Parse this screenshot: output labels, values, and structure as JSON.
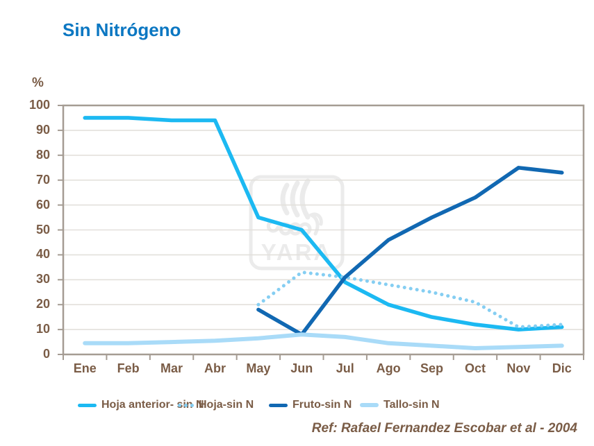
{
  "title": "Sin Nitrógeno",
  "reference": "Ref: Rafael Fernandez Escobar et al - 2004",
  "watermark_text": "YARA",
  "colors": {
    "title": "#0B77C2",
    "text": "#7A5C46",
    "grid": "#E3E0DB",
    "axis": "#A59C93",
    "watermark": "#EBEBEB"
  },
  "chart_data": {
    "type": "line",
    "title": "Sin Nitrógeno",
    "xlabel": "",
    "ylabel": "%",
    "ylim": [
      0,
      100
    ],
    "yticks": [
      0,
      10,
      20,
      30,
      40,
      50,
      60,
      70,
      80,
      90,
      100
    ],
    "grid": true,
    "legend_position": "bottom",
    "categories": [
      "Ene",
      "Feb",
      "Mar",
      "Abr",
      "May",
      "Jun",
      "Jul",
      "Ago",
      "Sep",
      "Oct",
      "Nov",
      "Dic"
    ],
    "series": [
      {
        "name": "Hoja anterior- sin N",
        "color": "#1CB9F2",
        "style": "solid",
        "values": [
          95,
          95,
          94,
          94,
          55,
          50,
          29,
          20,
          15,
          12,
          10,
          11
        ]
      },
      {
        "name": "Hoja-sin N",
        "color": "#85CEF2",
        "style": "dotted",
        "values": [
          null,
          null,
          null,
          null,
          20,
          33,
          31,
          28,
          25,
          21,
          11,
          12
        ]
      },
      {
        "name": "Fruto-sin N",
        "color": "#1168B2",
        "style": "solid",
        "values": [
          null,
          null,
          null,
          null,
          18,
          8,
          31,
          46,
          55,
          63,
          75,
          73
        ]
      },
      {
        "name": "Tallo-sin N",
        "color": "#A9DBF8",
        "style": "solid",
        "values": [
          4.5,
          4.5,
          5,
          5.5,
          6.5,
          8,
          7,
          4.5,
          3.5,
          2.5,
          3,
          3.5
        ]
      }
    ]
  }
}
